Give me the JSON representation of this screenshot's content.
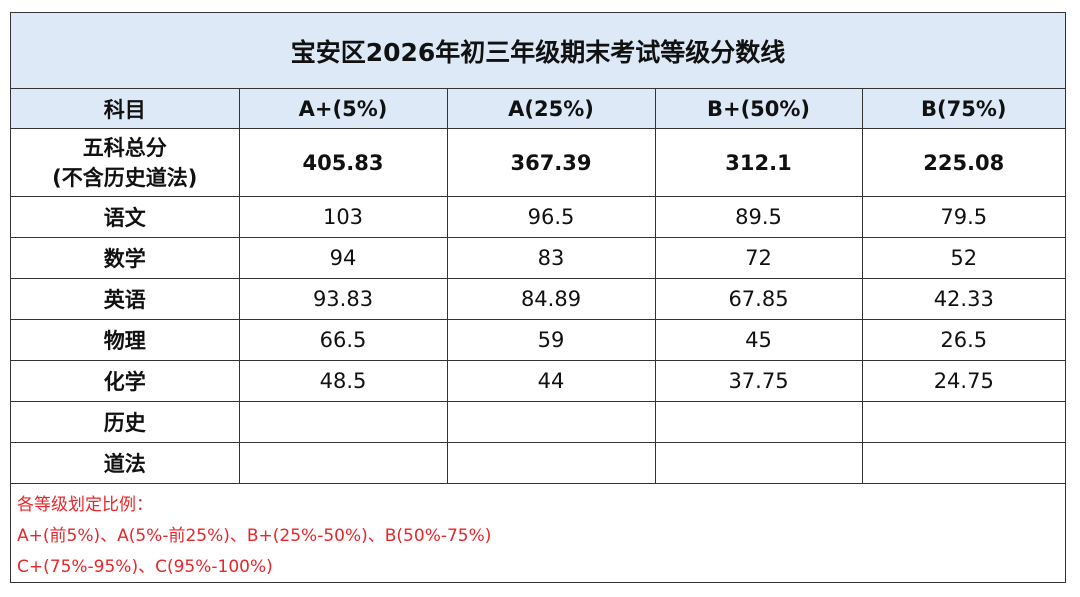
{
  "title": "宝安区2026年初三年级期末考试等级分数线",
  "table": {
    "header": [
      "科目",
      "A+(5%)",
      "A(25%)",
      "B+(50%)",
      "B(75%)"
    ],
    "rows": [
      [
        "五科总分\n(不含历史道法)",
        "405.83",
        "367.39",
        "312.1",
        "225.08"
      ],
      [
        "语文",
        "103",
        "96.5",
        "89.5",
        "79.5"
      ],
      [
        "数学",
        "94",
        "83",
        "72",
        "52"
      ],
      [
        "英语",
        "93.83",
        "84.89",
        "67.85",
        "42.33"
      ],
      [
        "物理",
        "66.5",
        "59",
        "45",
        "26.5"
      ],
      [
        "化学",
        "48.5",
        "44",
        "37.75",
        "24.75"
      ],
      [
        "历史"
      ],
      [
        "道法"
      ]
    ]
  },
  "notes": [
    "各等级划定比例：",
    "A+(前5%)、A(5%-前25%)、B+(25%-50%)、B(50%-75%)",
    "C+(75%-95%)、C(95%-100%)"
  ]
}
